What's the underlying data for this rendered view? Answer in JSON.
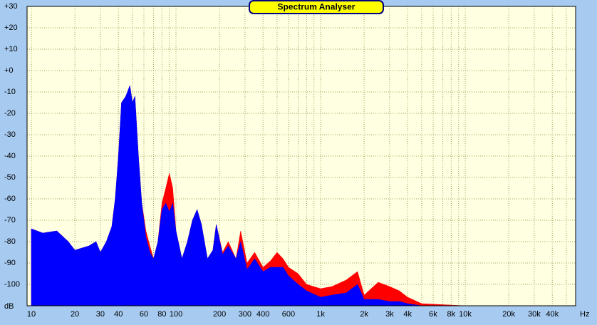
{
  "chart_data": {
    "type": "area",
    "title": "Spectrum Analyser",
    "y_label": "dB",
    "x_label": "Hz",
    "log_x": true,
    "grid": true,
    "xlim": [
      9.34,
      58000
    ],
    "ylim": [
      -110,
      30
    ],
    "yticks": [
      {
        "value": 30,
        "label": "+30"
      },
      {
        "value": 20,
        "label": "+20"
      },
      {
        "value": 10,
        "label": "+10"
      },
      {
        "value": 0,
        "label": "+0"
      },
      -10,
      -20,
      -30,
      -40,
      -50,
      -60,
      -70,
      -80,
      -90,
      -100
    ],
    "xticks": [
      10,
      20,
      30,
      40,
      60,
      80,
      100,
      200,
      300,
      400,
      600,
      {
        "value": 1000,
        "label": "1k"
      },
      {
        "value": 2000,
        "label": "2k"
      },
      {
        "value": 3000,
        "label": "3k"
      },
      {
        "value": 4000,
        "label": "4k"
      },
      {
        "value": 6000,
        "label": "6k"
      },
      {
        "value": 8000,
        "label": "8k"
      },
      {
        "value": 10000,
        "label": "10k"
      },
      {
        "value": 20000,
        "label": "20k"
      },
      {
        "value": 30000,
        "label": "30k"
      },
      {
        "value": 40000,
        "label": "40k"
      }
    ],
    "xminor": [
      50,
      70,
      90,
      500,
      700,
      800,
      900,
      5000,
      7000,
      9000,
      50000
    ],
    "x": [
      10,
      12,
      15,
      18,
      20,
      25,
      28,
      30,
      33,
      36,
      38,
      40,
      42,
      45,
      48,
      50,
      52,
      55,
      58,
      62,
      66,
      70,
      75,
      80,
      85,
      90,
      95,
      100,
      110,
      120,
      130,
      140,
      150,
      165,
      180,
      190,
      210,
      230,
      260,
      280,
      310,
      350,
      400,
      450,
      500,
      550,
      600,
      700,
      800,
      1000,
      1200,
      1500,
      1800,
      2000,
      2500,
      3000,
      3500,
      4000,
      5000,
      10000,
      50000
    ],
    "series": [
      {
        "color": "#ff0000",
        "values": [
          -74,
          -76,
          -75,
          -80,
          -84,
          -82,
          -80,
          -85,
          -80,
          -73,
          -60,
          -40,
          -15,
          -12,
          -7,
          -15,
          -12,
          -40,
          -62,
          -75,
          -82,
          -88,
          -80,
          -62,
          -55,
          -48,
          -55,
          -75,
          -88,
          -80,
          -70,
          -65,
          -72,
          -88,
          -84,
          -72,
          -85,
          -80,
          -88,
          -75,
          -90,
          -85,
          -92,
          -89,
          -85,
          -88,
          -92,
          -95,
          -100,
          -102,
          -101,
          -98,
          -94,
          -105,
          -99,
          -101,
          -103,
          -106,
          -109,
          -110,
          -110
        ]
      },
      {
        "color": "#0000ff",
        "values": [
          -74,
          -76,
          -75,
          -80,
          -84,
          -82,
          -80,
          -85,
          -80,
          -73,
          -60,
          -40,
          -15,
          -12,
          -7,
          -15,
          -12,
          -40,
          -62,
          -78,
          -85,
          -88,
          -80,
          -65,
          -62,
          -66,
          -62,
          -75,
          -88,
          -80,
          -70,
          -65,
          -72,
          -88,
          -84,
          -72,
          -86,
          -82,
          -88,
          -80,
          -93,
          -88,
          -94,
          -92,
          -92,
          -92,
          -96,
          -100,
          -103,
          -106,
          -105,
          -104,
          -100,
          -107,
          -107,
          -108,
          -108,
          -109,
          -110,
          -110,
          -110
        ]
      }
    ]
  }
}
